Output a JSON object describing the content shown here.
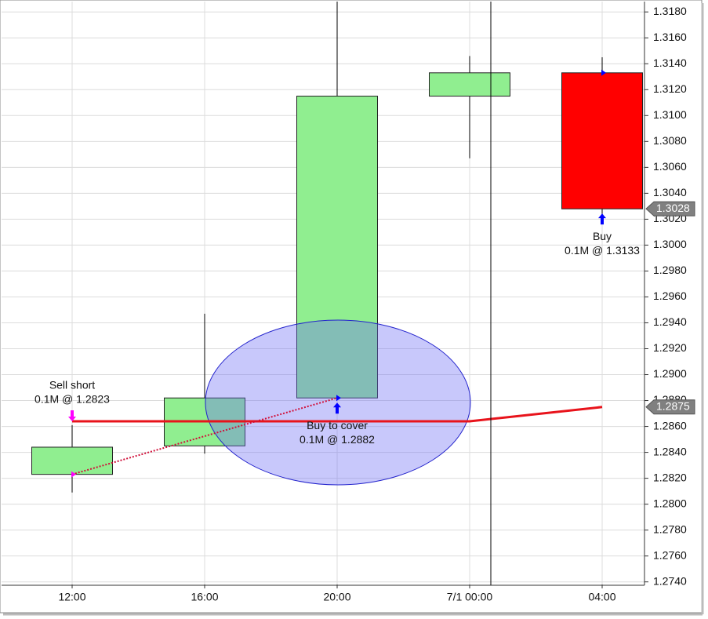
{
  "chart_data": {
    "type": "candlestick",
    "categories": [
      "12:00",
      "16:00",
      "20:00",
      "7/1 00:00",
      "04:00"
    ],
    "open": [
      1.2823,
      1.2845,
      1.2882,
      1.3115,
      1.3133
    ],
    "high": [
      1.2861,
      1.2947,
      1.3188,
      1.3146,
      1.3145
    ],
    "low": [
      1.2809,
      1.2839,
      1.2882,
      1.3067,
      1.3017
    ],
    "close": [
      1.2844,
      1.2882,
      1.3115,
      1.3133,
      1.3028
    ],
    "up_color": "#90ee90",
    "down_color": "#ff0000",
    "line": {
      "color": "#e8131b",
      "values": [
        1.2864,
        1.2864,
        1.2864,
        1.2864,
        1.2875
      ]
    },
    "ylim": [
      1.2738,
      1.3188
    ],
    "yticks": [
      {
        "value": 1.274,
        "label": "1.2740"
      },
      {
        "value": 1.276,
        "label": "1.2760"
      },
      {
        "value": 1.278,
        "label": "1.2780"
      },
      {
        "value": 1.28,
        "label": "1.2800"
      },
      {
        "value": 1.282,
        "label": "1.2820"
      },
      {
        "value": 1.284,
        "label": "1.2840"
      },
      {
        "value": 1.286,
        "label": "1.2860"
      },
      {
        "value": 1.288,
        "label": "1.2880"
      },
      {
        "value": 1.29,
        "label": "1.2900"
      },
      {
        "value": 1.292,
        "label": "1.2920"
      },
      {
        "value": 1.294,
        "label": "1.2940"
      },
      {
        "value": 1.296,
        "label": "1.2960"
      },
      {
        "value": 1.298,
        "label": "1.2980"
      },
      {
        "value": 1.3,
        "label": "1.3000"
      },
      {
        "value": 1.302,
        "label": "1.3020"
      },
      {
        "value": 1.304,
        "label": "1.3040"
      },
      {
        "value": 1.306,
        "label": "1.3060"
      },
      {
        "value": 1.308,
        "label": "1.3080"
      },
      {
        "value": 1.31,
        "label": "1.3100"
      },
      {
        "value": 1.312,
        "label": "1.3120"
      },
      {
        "value": 1.314,
        "label": "1.3140"
      },
      {
        "value": 1.316,
        "label": "1.3160"
      },
      {
        "value": 1.318,
        "label": "1.3180"
      }
    ],
    "grid": true,
    "price_tags": [
      {
        "value": 1.3028,
        "label": "1.3028"
      },
      {
        "value": 1.2875,
        "label": "1.2875"
      }
    ],
    "trades": [
      {
        "at": "12:00",
        "action": "Sell short",
        "detail": "0.1M @ 1.2823",
        "price": 1.2823,
        "color": "#ff00ff"
      },
      {
        "at": "20:00",
        "action": "Buy to cover",
        "detail": "0.1M @ 1.2882",
        "price": 1.2882,
        "color": "#0000ff"
      },
      {
        "at": "04:00",
        "action": "Buy",
        "detail": "0.1M @ 1.3133",
        "price": 1.3133,
        "color": "#0000ff"
      }
    ]
  }
}
